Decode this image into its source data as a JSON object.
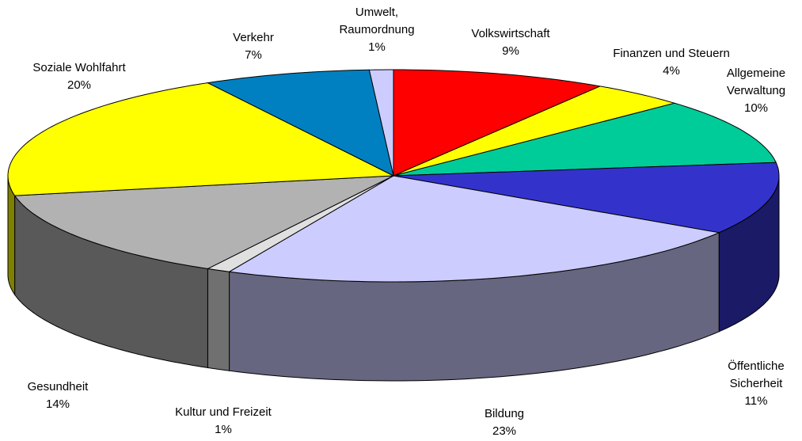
{
  "chart_data": {
    "type": "pie3d",
    "categories": [
      "Volkswirtschaft",
      "Finanzen und Steuern",
      "Allgemeine Verwaltung",
      "Öffentliche Sicherheit",
      "Bildung",
      "Kultur und Freizeit",
      "Gesundheit",
      "Soziale Wohlfahrt",
      "Verkehr",
      "Umwelt, Raumordnung"
    ],
    "values": [
      9,
      4,
      10,
      11,
      23,
      1,
      14,
      20,
      7,
      1
    ],
    "value_labels": [
      "9%",
      "4%",
      "10%",
      "11%",
      "23%",
      "1%",
      "14%",
      "20%",
      "7%",
      "1%"
    ],
    "colors": [
      "#ff0000",
      "#ffff00",
      "#00cc99",
      "#3333cc",
      "#ccccff",
      "#e0e0e0",
      "#b2b2b2",
      "#ffff00",
      "#0080c0",
      "#ccccff"
    ]
  }
}
